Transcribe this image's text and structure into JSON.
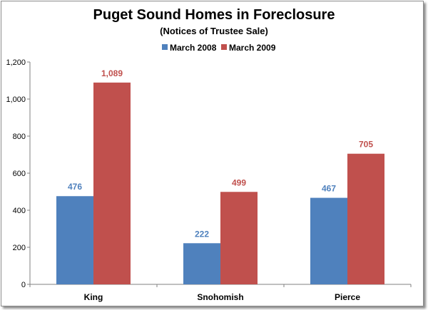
{
  "chart_data": {
    "type": "bar",
    "title": "Puget Sound Homes in Foreclosure",
    "subtitle": "(Notices of Trustee Sale)",
    "categories": [
      "King",
      "Snohomish",
      "Pierce"
    ],
    "series": [
      {
        "name": "March 2008",
        "values": [
          476,
          222,
          467
        ],
        "labels": [
          "476",
          "222",
          "467"
        ],
        "color": "#4F81BD"
      },
      {
        "name": "March 2009",
        "values": [
          1089,
          499,
          705
        ],
        "labels": [
          "1,089",
          "499",
          "705"
        ],
        "color": "#C0504D"
      }
    ],
    "ylim": [
      0,
      1200
    ],
    "yticks": [
      0,
      200,
      400,
      600,
      800,
      1000,
      1200
    ],
    "ytick_labels": [
      "0",
      "200",
      "400",
      "600",
      "800",
      "1,000",
      "1,200"
    ],
    "xlabel": "",
    "ylabel": "",
    "grid": false,
    "legend_position": "top"
  }
}
